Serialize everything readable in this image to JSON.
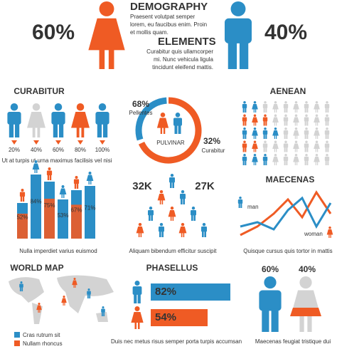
{
  "demography": {
    "title": "DEMOGRAPHY",
    "text": [
      "Praesent volutpat semper",
      "lorem, eu faucibus enim. Proin",
      "et mollis quam."
    ],
    "female_pct": "60%",
    "male_pct": "40%"
  },
  "elements": {
    "title": "ELEMENTS",
    "text": [
      "Curabitur quis ullamcorper",
      "mi. Nunc vehicula ligula",
      "tincidunt eleifend mattis."
    ]
  },
  "curabitur": {
    "title": "CURABITUR",
    "labels": [
      "20%",
      "40%",
      "60%",
      "80%",
      "100%"
    ],
    "caption": "Ut at turpis ut urna maximus facilisis vel nisi"
  },
  "donut": {
    "left_value": "68%",
    "left_label": "Pellentes",
    "center": "PULVINAR",
    "right_value": "32%",
    "right_label": "Curabitur"
  },
  "aenean": {
    "title": "AENEAN"
  },
  "bars": {
    "labels": [
      "52%",
      "84%",
      "75%",
      "53%",
      "67%",
      "71%"
    ],
    "caption": "Nulla imperdiet varius euismod"
  },
  "pyramid": {
    "left": "32K",
    "right": "27K",
    "caption": "Aliquam  bibendum efficitur suscipit"
  },
  "maecenas": {
    "title": "MAECENAS",
    "man": "man",
    "woman": "woman",
    "caption": "Quisque cursus quis tortor in mattis"
  },
  "world_map": {
    "title": "WORLD MAP",
    "legend": [
      "Cras rutrum sit",
      "Nullam rhoncus"
    ]
  },
  "phasellus": {
    "title": "PHASELLUS",
    "bars": [
      "82%",
      "54%"
    ],
    "caption": "Duis nec metus risus semper porta turpis accumsan"
  },
  "gender": {
    "left": "60%",
    "right": "40%",
    "caption": "Maecenas feugiat tristique dui"
  }
}
